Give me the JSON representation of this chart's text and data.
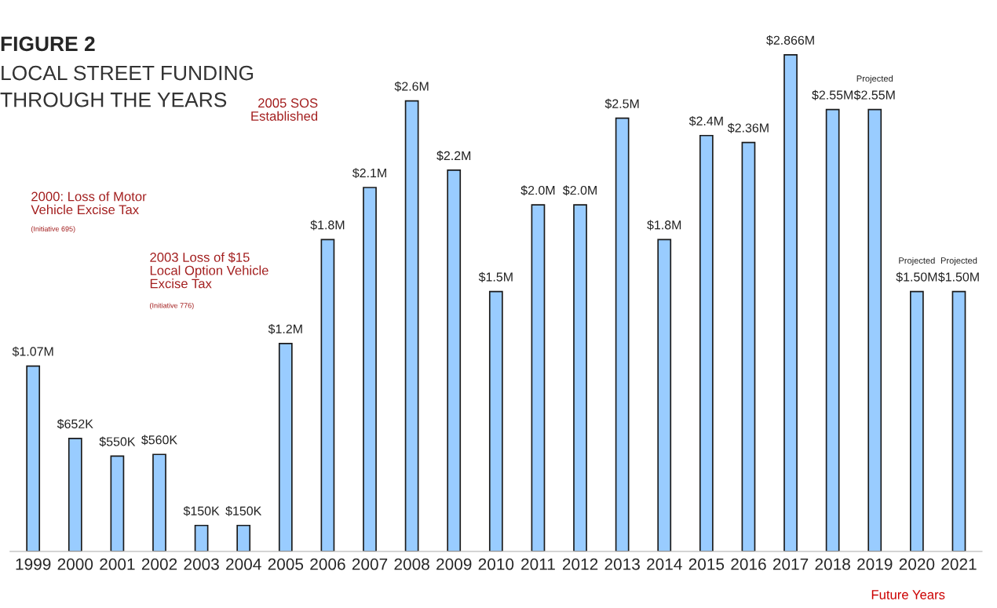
{
  "chart_data": {
    "type": "bar",
    "title": "FIGURE 2",
    "subtitle": "LOCAL STREET FUNDING\nTHROUGH THE YEARS",
    "categories": [
      "1999",
      "2000",
      "2001",
      "2002",
      "2003",
      "2004",
      "2005",
      "2006",
      "2007",
      "2008",
      "2009",
      "2010",
      "2011",
      "2012",
      "2013",
      "2014",
      "2015",
      "2016",
      "2017",
      "2018",
      "2019",
      "2020",
      "2021"
    ],
    "values": [
      1070000,
      652000,
      550000,
      560000,
      150000,
      150000,
      1200000,
      1800000,
      2100000,
      2600000,
      2200000,
      1500000,
      2000000,
      2000000,
      2500000,
      1800000,
      2400000,
      2360000,
      2866000,
      2550000,
      2550000,
      1500000,
      1500000
    ],
    "value_labels": [
      "$1.07M",
      "$652K",
      "$550K",
      "$560K",
      "$150K",
      "$150K",
      "$1.2M",
      "$1.8M",
      "$2.1M",
      "$2.6M",
      "$2.2M",
      "$1.5M",
      "$2.0M",
      "$2.0M",
      "$2.5M",
      "$1.8M",
      "$2.4M",
      "$2.36M",
      "$2.866M",
      "$2.55M",
      "$2.55M",
      "$1.50M",
      "$1.50M"
    ],
    "color": "#99ccff",
    "annotations": [
      "2000: Loss of Motor\nVehicle Excise Tax",
      "(Initiative 695)",
      "2003 Loss of $15\nLocal Option Vehicle\nExcise Tax",
      "(Initiative 776)",
      "2005 SOS\nEstablished",
      "Projected",
      "Projected",
      "Projected",
      "Future Years"
    ],
    "grid": false,
    "legend": false
  }
}
